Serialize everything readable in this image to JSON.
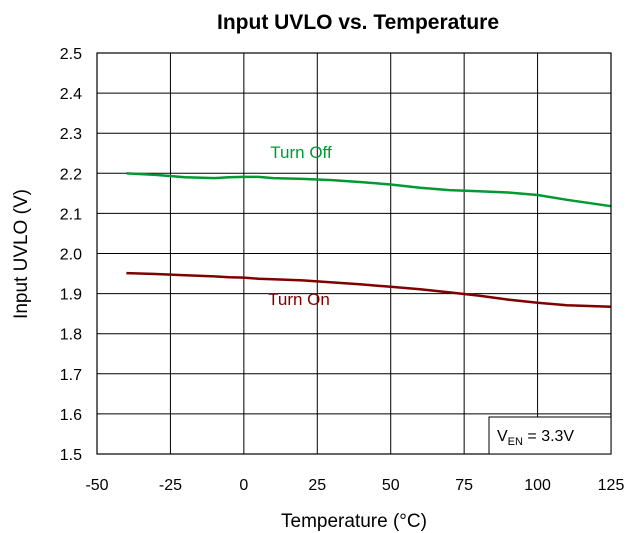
{
  "chart_data": {
    "type": "line",
    "title": "Input UVLO vs. Temperature",
    "xlabel": "Temperature (°C)",
    "ylabel": "Input UVLO (V)",
    "xlim": [
      -50,
      125
    ],
    "ylim": [
      1.5,
      2.5
    ],
    "xticks": [
      "-50",
      "-25",
      "0",
      "25",
      "50",
      "75",
      "100",
      "125"
    ],
    "yticks": [
      "1.5",
      "1.6",
      "1.7",
      "1.8",
      "1.9",
      "2.0",
      "2.1",
      "2.2",
      "2.3",
      "2.4",
      "2.5"
    ],
    "grid": true,
    "series": [
      {
        "name": "Turn Off",
        "color": "#009933",
        "x": [
          -40,
          -30,
          -20,
          -10,
          -5,
          0,
          5,
          10,
          20,
          30,
          40,
          50,
          60,
          70,
          80,
          90,
          100,
          110,
          125
        ],
        "y": [
          2.2,
          2.196,
          2.19,
          2.188,
          2.19,
          2.191,
          2.191,
          2.188,
          2.186,
          2.183,
          2.178,
          2.172,
          2.164,
          2.158,
          2.155,
          2.152,
          2.146,
          2.134,
          2.118
        ]
      },
      {
        "name": "Turn On",
        "color": "#7f0000",
        "x": [
          -40,
          -30,
          -20,
          -10,
          -5,
          0,
          5,
          10,
          20,
          30,
          40,
          50,
          60,
          70,
          80,
          90,
          100,
          110,
          125
        ],
        "y": [
          1.951,
          1.949,
          1.946,
          1.943,
          1.941,
          1.94,
          1.937,
          1.936,
          1.933,
          1.928,
          1.923,
          1.917,
          1.911,
          1.903,
          1.895,
          1.885,
          1.877,
          1.871,
          1.867
        ]
      }
    ],
    "annotation": {
      "main": "V",
      "sub": "EN",
      "rest": " = 3.3V"
    }
  }
}
